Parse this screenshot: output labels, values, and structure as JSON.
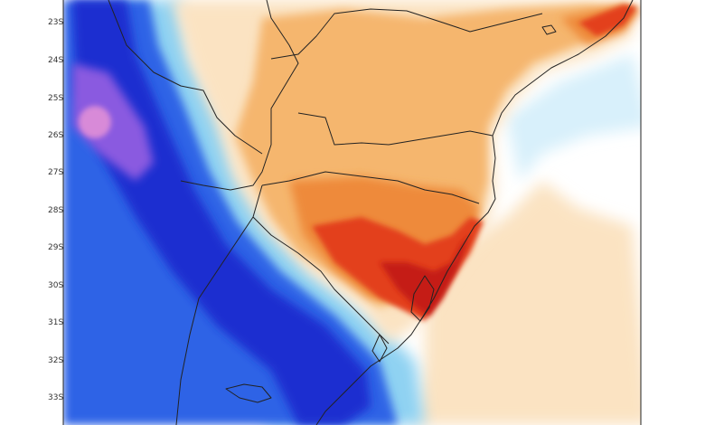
{
  "map": {
    "latitude_labels": [
      "23S",
      "24S",
      "25S",
      "26S",
      "27S",
      "28S",
      "29S",
      "30S",
      "31S",
      "32S",
      "33S"
    ],
    "colors": {
      "deep_blue": "#1e2fd0",
      "blue": "#2f63e6",
      "light_blue": "#8fd2f2",
      "pale_blue": "#d8f0fb",
      "purple": "#8a5ae0",
      "pink": "#d88ad8",
      "pale_orange": "#fbe3c2",
      "orange": "#f5b66e",
      "dark_orange": "#ee8a3a",
      "red": "#e3401e",
      "dark_red": "#c51f16",
      "border": "#222222"
    }
  }
}
